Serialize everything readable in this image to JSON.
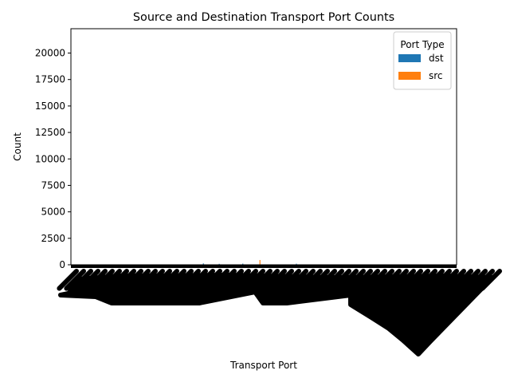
{
  "chart_data": {
    "type": "bar",
    "title": "Source and Destination Transport Port Counts",
    "xlabel": "Transport Port",
    "ylabel": "Count",
    "ylim": [
      0,
      22300
    ],
    "yticks": [
      0,
      2500,
      5000,
      7500,
      10000,
      12500,
      15000,
      17500,
      20000
    ],
    "ytick_labels": [
      "0",
      "2500",
      "5000",
      "7500",
      "10000",
      "12500",
      "15000",
      "17500",
      "20000"
    ],
    "category_count": 900,
    "xtick_labels_legible": false,
    "stacked": true,
    "legend": {
      "title": "Port Type",
      "placement": "top-right",
      "entries": [
        "dst",
        "src"
      ]
    },
    "series": [
      {
        "name": "dst",
        "color": "#1f77b4",
        "values": []
      },
      {
        "name": "src",
        "color": "#ff7f0e",
        "values": []
      }
    ],
    "notable_bars": [
      {
        "category_index": 440,
        "series": "src",
        "value": 450
      },
      {
        "category_index": 308,
        "series": "dst",
        "value": 130
      },
      {
        "category_index": 345,
        "series": "dst",
        "value": 90
      },
      {
        "category_index": 400,
        "series": "dst",
        "value": 110
      },
      {
        "category_index": 525,
        "series": "dst",
        "value": 100
      }
    ],
    "grid": false
  }
}
